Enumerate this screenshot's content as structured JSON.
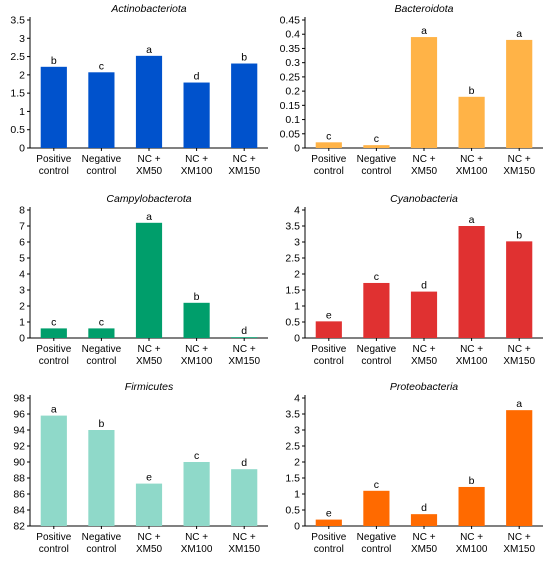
{
  "chart_data": [
    {
      "type": "bar",
      "title": "Actinobacteriota",
      "categories": [
        [
          "Positive",
          "control"
        ],
        [
          "Negative",
          "control"
        ],
        [
          "NC +",
          "XM50"
        ],
        [
          "NC +",
          "XM100"
        ],
        [
          "NC +",
          "XM150"
        ]
      ],
      "values": [
        2.22,
        2.07,
        2.52,
        1.79,
        2.31
      ],
      "letters": [
        "b",
        "c",
        "a",
        "d",
        "b"
      ],
      "ylim": [
        0,
        3.5
      ],
      "yticks": [
        0,
        0.5,
        1,
        1.5,
        2,
        2.5,
        3,
        3.5
      ],
      "ytick_labels": [
        "0",
        "0.5",
        "1",
        "1.5",
        "2",
        "2.5",
        "3",
        "3.5"
      ],
      "color": "#0052CC"
    },
    {
      "type": "bar",
      "title": "Bacteroidota",
      "categories": [
        [
          "Positive",
          "control"
        ],
        [
          "Negative",
          "control"
        ],
        [
          "NC +",
          "XM50"
        ],
        [
          "NC +",
          "XM100"
        ],
        [
          "NC +",
          "XM150"
        ]
      ],
      "values": [
        0.02,
        0.01,
        0.39,
        0.18,
        0.38
      ],
      "letters": [
        "c",
        "c",
        "a",
        "b",
        "a"
      ],
      "ylim": [
        0,
        0.45
      ],
      "yticks": [
        0,
        0.05,
        0.1,
        0.15,
        0.2,
        0.25,
        0.3,
        0.35,
        0.4,
        0.45
      ],
      "ytick_labels": [
        "0",
        "0.05",
        "0.1",
        "0.15",
        "0.2",
        "0.25",
        "0.3",
        "0.35",
        "0.4",
        "0.45"
      ],
      "color": "#FFB347"
    },
    {
      "type": "bar",
      "title": "Campylobacterota",
      "categories": [
        [
          "Positive",
          "control"
        ],
        [
          "Negative",
          "control"
        ],
        [
          "NC +",
          "XM50"
        ],
        [
          "NC +",
          "XM100"
        ],
        [
          "NC +",
          "XM150"
        ]
      ],
      "values": [
        0.6,
        0.6,
        7.2,
        2.2,
        0.05
      ],
      "letters": [
        "c",
        "c",
        "a",
        "b",
        "d"
      ],
      "ylim": [
        0,
        8
      ],
      "yticks": [
        0,
        1,
        2,
        3,
        4,
        5,
        6,
        7,
        8
      ],
      "ytick_labels": [
        "0",
        "1",
        "2",
        "3",
        "4",
        "5",
        "6",
        "7",
        "8"
      ],
      "color": "#009E6B"
    },
    {
      "type": "bar",
      "title": "Cyanobacteria",
      "categories": [
        [
          "Positive",
          "control"
        ],
        [
          "Negative",
          "control"
        ],
        [
          "NC +",
          "XM50"
        ],
        [
          "NC +",
          "XM100"
        ],
        [
          "NC +",
          "XM150"
        ]
      ],
      "values": [
        0.52,
        1.72,
        1.45,
        3.5,
        3.02
      ],
      "letters": [
        "e",
        "c",
        "d",
        "a",
        "b"
      ],
      "ylim": [
        0,
        4
      ],
      "yticks": [
        0,
        0.5,
        1,
        1.5,
        2,
        2.5,
        3,
        3.5,
        4
      ],
      "ytick_labels": [
        "0",
        "0.5",
        "1",
        "1.5",
        "2",
        "2.5",
        "3",
        "3.5",
        "4"
      ],
      "color": "#E03131"
    },
    {
      "type": "bar",
      "title": "Firmicutes",
      "categories": [
        [
          "Positive",
          "control"
        ],
        [
          "Negative",
          "control"
        ],
        [
          "NC +",
          "XM50"
        ],
        [
          "NC +",
          "XM100"
        ],
        [
          "NC +",
          "XM150"
        ]
      ],
      "values": [
        95.8,
        94.0,
        87.3,
        90.0,
        89.1
      ],
      "letters": [
        "a",
        "b",
        "e",
        "c",
        "d"
      ],
      "ylim": [
        82,
        98
      ],
      "yticks": [
        82,
        84,
        86,
        88,
        90,
        92,
        94,
        96,
        98
      ],
      "ytick_labels": [
        "82",
        "84",
        "86",
        "88",
        "90",
        "92",
        "94",
        "96",
        "98"
      ],
      "color": "#8FD9C9"
    },
    {
      "type": "bar",
      "title": "Proteobacteria",
      "categories": [
        [
          "Positive",
          "control"
        ],
        [
          "Negative",
          "control"
        ],
        [
          "NC +",
          "XM50"
        ],
        [
          "NC +",
          "XM100"
        ],
        [
          "NC +",
          "XM150"
        ]
      ],
      "values": [
        0.2,
        1.1,
        0.37,
        1.22,
        3.62
      ],
      "letters": [
        "e",
        "c",
        "d",
        "b",
        "a"
      ],
      "ylim": [
        0,
        4
      ],
      "yticks": [
        0,
        0.5,
        1,
        1.5,
        2,
        2.5,
        3,
        3.5,
        4
      ],
      "ytick_labels": [
        "0",
        "0.5",
        "1",
        "1.5",
        "2",
        "2.5",
        "3",
        "3.5",
        "4"
      ],
      "color": "#FF6A00"
    }
  ]
}
